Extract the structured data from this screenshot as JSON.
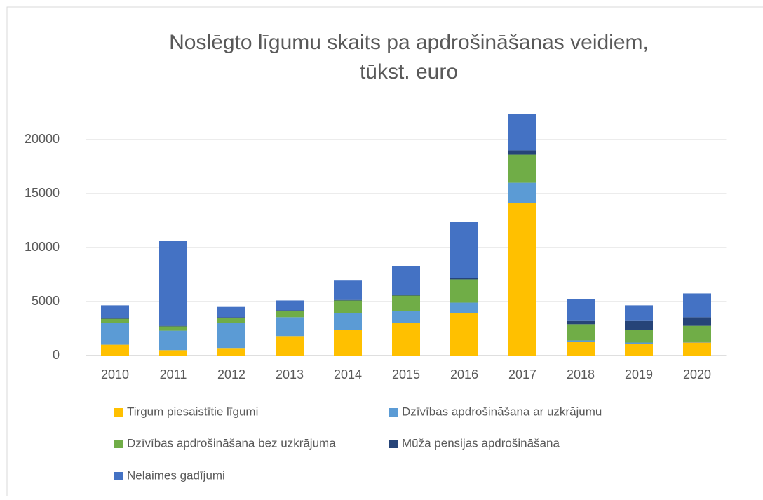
{
  "chart_data": {
    "type": "stacked_bar",
    "title": [
      "Noslēgto līgumu skaits pa apdrošināšanas veidiem,",
      "tūkst. euro"
    ],
    "categories": [
      "2010",
      "2011",
      "2012",
      "2013",
      "2014",
      "2015",
      "2016",
      "2017",
      "2018",
      "2019",
      "2020"
    ],
    "series": [
      {
        "name": "Tirgum piesaistītie līgumi",
        "color": "#ffc000",
        "values": [
          1000,
          500,
          700,
          1800,
          2400,
          3000,
          3900,
          14100,
          1300,
          1100,
          1200
        ]
      },
      {
        "name": "Dzīvības apdrošināšana ar uzkrājumu",
        "color": "#5b9bd5",
        "values": [
          2000,
          1800,
          2300,
          1750,
          1550,
          1150,
          1000,
          1900,
          100,
          100,
          100
        ]
      },
      {
        "name": "Dzīvības apdrošināšana bez uzkrājuma",
        "color": "#70ad47",
        "values": [
          400,
          400,
          500,
          600,
          1150,
          1400,
          2150,
          2600,
          1500,
          1200,
          1450
        ]
      },
      {
        "name": "Mūža pensijas apdrošināšana",
        "color": "#264478",
        "values": [
          50,
          50,
          50,
          50,
          50,
          100,
          150,
          400,
          300,
          800,
          800
        ]
      },
      {
        "name": "Nelaimes gadījumi",
        "color": "#4472c4",
        "values": [
          1200,
          7850,
          950,
          900,
          1850,
          2650,
          5200,
          3400,
          2000,
          1450,
          2200
        ]
      }
    ],
    "ylim": [
      0,
      25000
    ],
    "yticks": [
      0,
      5000,
      10000,
      15000,
      20000
    ],
    "grid": true,
    "legend": "bottom"
  }
}
